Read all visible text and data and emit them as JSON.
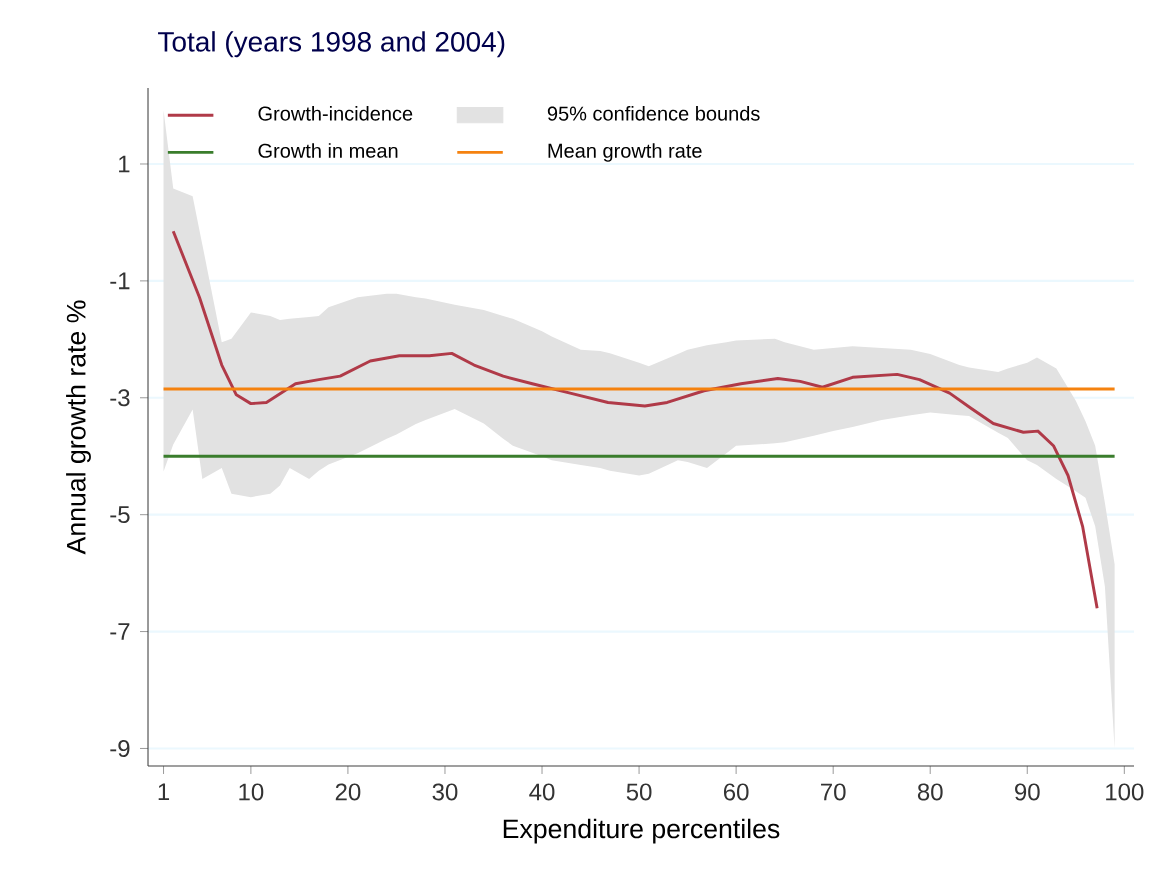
{
  "chart_data": {
    "type": "line",
    "title": "Total (years 1998 and 2004)",
    "xlabel": "Expenditure percentiles",
    "ylabel": "Annual growth rate %",
    "series": [
      {
        "name": "Growth-incidence",
        "color": "#b03a48",
        "x": [
          2,
          4.7,
          7,
          8.5,
          10,
          11.6,
          14.6,
          17,
          19.2,
          22.3,
          25.3,
          28.4,
          30.7,
          33,
          36,
          39,
          42.9,
          46.8,
          50.6,
          52.9,
          56.7,
          60.5,
          64.3,
          66.6,
          68.9,
          72,
          76.6,
          78.9,
          82,
          84.2,
          86.5,
          89.6,
          91.1,
          92.7,
          94.2,
          95.7,
          97.2
        ],
        "values": [
          -0.15,
          -1.28,
          -2.44,
          -2.95,
          -3.1,
          -3.08,
          -2.76,
          -2.69,
          -2.63,
          -2.37,
          -2.28,
          -2.28,
          -2.24,
          -2.44,
          -2.63,
          -2.76,
          -2.92,
          -3.08,
          -3.14,
          -3.08,
          -2.88,
          -2.76,
          -2.67,
          -2.72,
          -2.82,
          -2.65,
          -2.6,
          -2.69,
          -2.92,
          -3.18,
          -3.44,
          -3.59,
          -3.57,
          -3.82,
          -4.33,
          -5.2,
          -6.6
        ]
      },
      {
        "name": "95% confidence bounds",
        "type": "area",
        "color": "#e2e2e2",
        "x": [
          1,
          2,
          4,
          5,
          7,
          8,
          10,
          12,
          13,
          14,
          16,
          17,
          18,
          21,
          24,
          25,
          27,
          28,
          31,
          34,
          36,
          37,
          40,
          41,
          44,
          46,
          47,
          50,
          51,
          54,
          55,
          57,
          59,
          60,
          64,
          65,
          68,
          70,
          72,
          75,
          78,
          80,
          83,
          84,
          87,
          88,
          90,
          91,
          93,
          95,
          96,
          97,
          98,
          99
        ],
        "values": [
          null,
          null,
          null,
          null,
          null,
          null,
          null,
          null,
          null,
          null,
          null,
          null,
          null,
          null,
          null,
          null,
          null,
          null,
          null,
          null,
          null,
          null,
          null,
          null,
          null,
          null,
          null,
          null,
          null,
          null,
          null,
          null,
          null,
          null,
          null,
          null,
          null,
          null,
          null,
          null,
          null,
          null,
          null,
          null,
          null,
          null,
          null,
          null,
          null,
          null,
          null,
          null,
          null,
          null
        ],
        "upper": [
          1.92,
          0.58,
          0.45,
          -0.38,
          -2.05,
          -1.99,
          -1.54,
          -1.6,
          -1.67,
          -1.65,
          -1.62,
          -1.6,
          -1.45,
          -1.28,
          -1.22,
          -1.22,
          -1.28,
          -1.3,
          -1.41,
          -1.5,
          -1.6,
          -1.65,
          -1.86,
          -1.95,
          -2.18,
          -2.2,
          -2.24,
          -2.4,
          -2.46,
          -2.25,
          -2.18,
          -2.1,
          -2.05,
          -2.02,
          -1.99,
          -2.05,
          -2.18,
          -2.15,
          -2.12,
          -2.15,
          -2.18,
          -2.25,
          -2.44,
          -2.48,
          -2.56,
          -2.5,
          -2.4,
          -2.31,
          -2.5,
          -3.05,
          -3.4,
          -3.82,
          -4.8,
          -5.85
        ],
        "lower": [
          -4.26,
          -3.8,
          -3.2,
          -4.39,
          -4.2,
          -4.64,
          -4.7,
          -4.64,
          -4.5,
          -4.2,
          -4.39,
          -4.25,
          -4.14,
          -3.95,
          -3.7,
          -3.63,
          -3.45,
          -3.38,
          -3.19,
          -3.44,
          -3.7,
          -3.82,
          -4.0,
          -4.07,
          -4.15,
          -4.2,
          -4.25,
          -4.33,
          -4.3,
          -4.07,
          -4.1,
          -4.2,
          -3.95,
          -3.82,
          -3.78,
          -3.76,
          -3.65,
          -3.57,
          -3.5,
          -3.38,
          -3.3,
          -3.25,
          -3.3,
          -3.31,
          -3.6,
          -3.69,
          -4.07,
          -4.15,
          -4.39,
          -4.6,
          -4.71,
          -5.2,
          -6.23,
          -9.0
        ]
      },
      {
        "name": "Growth in mean",
        "color": "#3a7d2c",
        "x": [
          1,
          99
        ],
        "values": [
          -4.0,
          -4.0
        ]
      },
      {
        "name": "Mean growth rate",
        "color": "#f5820f",
        "x": [
          1,
          99
        ],
        "values": [
          -2.85,
          -2.85
        ]
      }
    ],
    "xlim": [
      -0.6,
      101
    ],
    "ylim": [
      -9.3,
      2.3
    ],
    "xticks": [
      1,
      10,
      20,
      30,
      40,
      50,
      60,
      70,
      80,
      90,
      100
    ],
    "yticks": [
      1,
      -1,
      -3,
      -5,
      -7,
      -9
    ],
    "grid": "y",
    "legend": "top left",
    "marker": "none",
    "line_style": "solid"
  }
}
